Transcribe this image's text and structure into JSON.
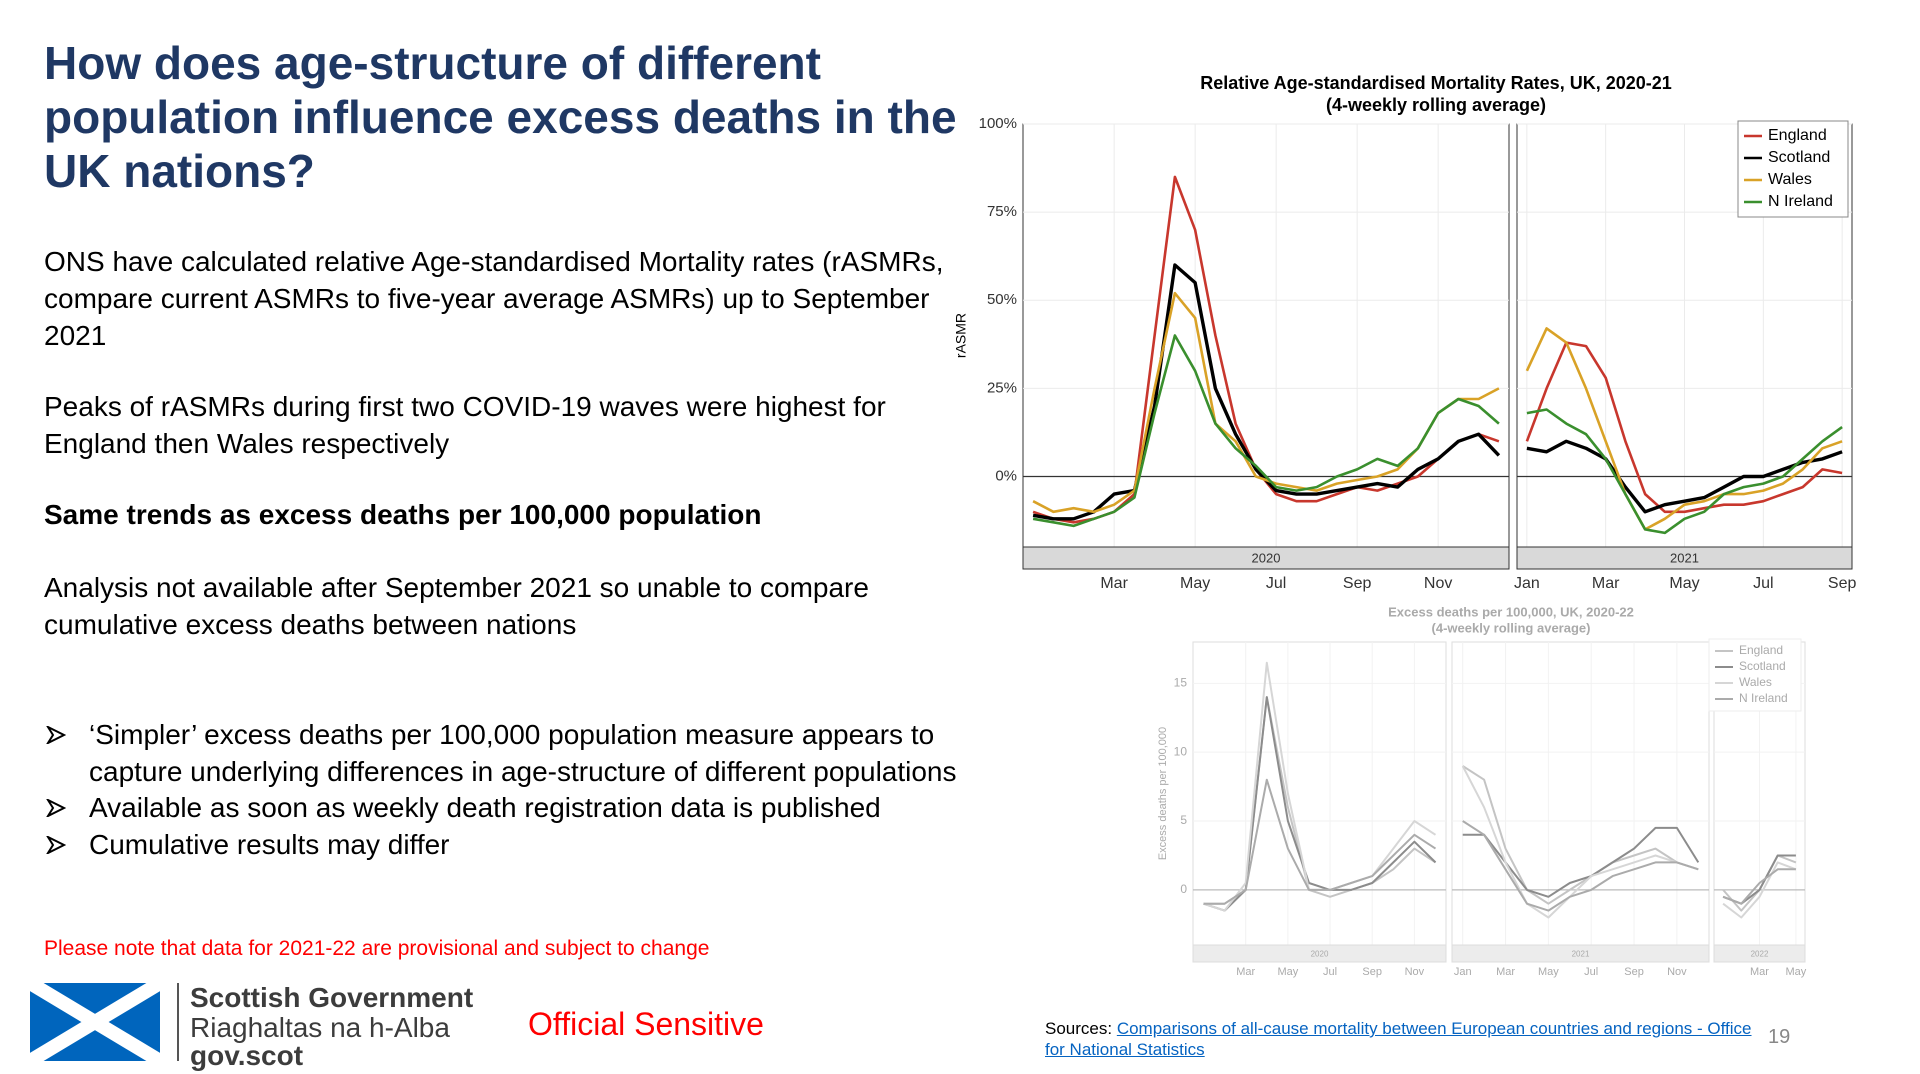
{
  "slide": {
    "title": "How does age-structure of different population influence excess deaths in the UK nations?",
    "paragraphs": [
      "ONS have calculated relative Age-standardised Mortality rates (rASMRs, compare current ASMRs to five-year average ASMRs) up to September 2021",
      "Peaks of rASMRs during first two COVID-19 waves were highest for England then Wales respectively",
      "Same trends as excess deaths per 100,000 population",
      "Analysis not available after September 2021 so unable to compare cumulative excess deaths between nations"
    ],
    "bullets": [
      "‘Simpler’ excess deaths per 100,000 population measure appears to capture underlying differences in age-structure of different populations",
      "Available as soon as weekly death registration data is published",
      "Cumulative results may differ"
    ],
    "note": "Please note that data for 2021-22 are provisional and subject to change",
    "logo": [
      "Scottish Government",
      "Riaghaltas na h-Alba",
      "gov.scot"
    ],
    "classification": "Official Sensitive",
    "sources_prefix": "Sources:",
    "sources_link": "Comparisons of all-cause mortality between European countries and regions - Office for National Statistics",
    "page_number": 19
  },
  "chart_data": [
    {
      "type": "line",
      "title": "Relative Age-standardised Mortality Rates, UK, 2020-21",
      "subtitle": "(4-weekly rolling average)",
      "y_label": "rASMR",
      "ylim": [
        -20,
        100
      ],
      "yticks": [
        {
          "value": 0,
          "label": "0%"
        },
        {
          "value": 25,
          "label": "25%"
        },
        {
          "value": 50,
          "label": "50%"
        },
        {
          "value": 75,
          "label": "75%"
        },
        {
          "value": 100,
          "label": "100%"
        }
      ],
      "grid": true,
      "legend": "top-right",
      "panels": [
        {
          "label": "2020",
          "categories": [
            null,
            null,
            null,
            null,
            "Mar",
            null,
            null,
            null,
            "May",
            null,
            null,
            null,
            "Jul",
            null,
            null,
            null,
            "Sep",
            null,
            null,
            null,
            "Nov",
            null,
            null,
            null
          ]
        },
        {
          "label": "2021",
          "categories": [
            "Jan",
            null,
            null,
            null,
            "Mar",
            null,
            null,
            null,
            "May",
            null,
            null,
            null,
            "Jul",
            null,
            null,
            null,
            "Sep"
          ]
        }
      ],
      "series": [
        {
          "name": "England",
          "color": "#c8372d",
          "values": [
            -10,
            -12,
            -13,
            -12,
            -10,
            -5,
            40,
            85,
            70,
            40,
            15,
            2,
            -5,
            -7,
            -7,
            -5,
            -3,
            -4,
            -2,
            0,
            5,
            10,
            12,
            10,
            10,
            25,
            38,
            37,
            28,
            10,
            -5,
            -10,
            -10,
            -9,
            -8,
            -8,
            -7,
            -5,
            -3,
            2,
            1
          ]
        },
        {
          "name": "Scotland",
          "color": "#000000",
          "values": [
            -11,
            -12,
            -12,
            -10,
            -5,
            -4,
            20,
            60,
            55,
            25,
            12,
            2,
            -4,
            -5,
            -5,
            -4,
            -3,
            -2,
            -3,
            2,
            5,
            10,
            12,
            6,
            8,
            7,
            10,
            8,
            5,
            -3,
            -10,
            -8,
            -7,
            -6,
            -3,
            0,
            0,
            2,
            4,
            5,
            7
          ]
        },
        {
          "name": "Wales",
          "color": "#d9a227",
          "values": [
            -7,
            -10,
            -9,
            -10,
            -8,
            -4,
            25,
            52,
            45,
            15,
            10,
            0,
            -2,
            -3,
            -4,
            -2,
            -1,
            0,
            2,
            8,
            18,
            22,
            22,
            25,
            30,
            42,
            38,
            25,
            10,
            -5,
            -15,
            -12,
            -8,
            -7,
            -5,
            -5,
            -4,
            -2,
            2,
            8,
            10
          ]
        },
        {
          "name": "N Ireland",
          "color": "#3a8f2e",
          "values": [
            -12,
            -13,
            -14,
            -12,
            -10,
            -6,
            18,
            40,
            30,
            15,
            8,
            3,
            -3,
            -4,
            -3,
            0,
            2,
            5,
            3,
            8,
            18,
            22,
            20,
            15,
            18,
            19,
            15,
            12,
            5,
            -5,
            -15,
            -16,
            -12,
            -10,
            -5,
            -3,
            -2,
            0,
            5,
            10,
            14
          ]
        }
      ]
    },
    {
      "type": "line",
      "title": "Excess deaths per 100,000, UK, 2020-22",
      "subtitle": "(4-weekly rolling average)",
      "y_label": "Excess deaths per 100,000",
      "ylim": [
        -4,
        18
      ],
      "yticks": [
        0,
        5,
        10,
        15
      ],
      "grid": true,
      "legend": "top-right",
      "panels": [
        {
          "label": "2020",
          "categories": [
            null,
            null,
            "Mar",
            null,
            "May",
            null,
            "Jul",
            null,
            "Sep",
            null,
            "Nov",
            null
          ]
        },
        {
          "label": "2021",
          "categories": [
            "Jan",
            null,
            "Mar",
            null,
            "May",
            null,
            "Jul",
            null,
            "Sep",
            null,
            "Nov",
            null
          ]
        },
        {
          "label": "2022",
          "categories": [
            null,
            null,
            "Mar",
            null,
            "May"
          ]
        }
      ],
      "series": [
        {
          "name": "England",
          "color": "#c4c4c4",
          "values": [
            -1,
            -1,
            0,
            14,
            6,
            0,
            -0.5,
            0,
            0.5,
            1.5,
            3,
            2,
            9,
            8,
            3,
            0,
            -1,
            0,
            1,
            2,
            2.5,
            3,
            2,
            1.5,
            0,
            -1.5,
            0,
            2.5,
            2
          ]
        },
        {
          "name": "Scotland",
          "color": "#8c8c8c",
          "values": [
            -1,
            -1.5,
            0,
            14,
            5,
            0.5,
            0,
            0,
            0.5,
            2,
            3.5,
            2,
            4,
            4,
            2,
            0,
            -0.5,
            0.5,
            1,
            2,
            3,
            4.5,
            4.5,
            2,
            -0.5,
            -1,
            0,
            2.5,
            2.5
          ]
        },
        {
          "name": "Wales",
          "color": "#d6d6d6",
          "values": [
            -1,
            -1.5,
            0.5,
            16.5,
            7,
            0,
            0,
            0.5,
            1,
            3,
            5,
            4,
            9,
            6,
            2,
            -1,
            -2,
            -0.5,
            1,
            1.5,
            2,
            2.5,
            2,
            1.5,
            -1,
            -2,
            -0.5,
            2,
            1.5
          ]
        },
        {
          "name": "N Ireland",
          "color": "#ababab",
          "values": [
            -1,
            -1,
            0,
            8,
            3,
            0,
            0,
            0.5,
            1,
            2.5,
            4,
            3,
            5,
            4,
            1.5,
            -1,
            -1.5,
            -0.5,
            0,
            1,
            1.5,
            2,
            2,
            1.5,
            -0.5,
            -1,
            0.5,
            1.5,
            1.5
          ]
        }
      ]
    }
  ]
}
